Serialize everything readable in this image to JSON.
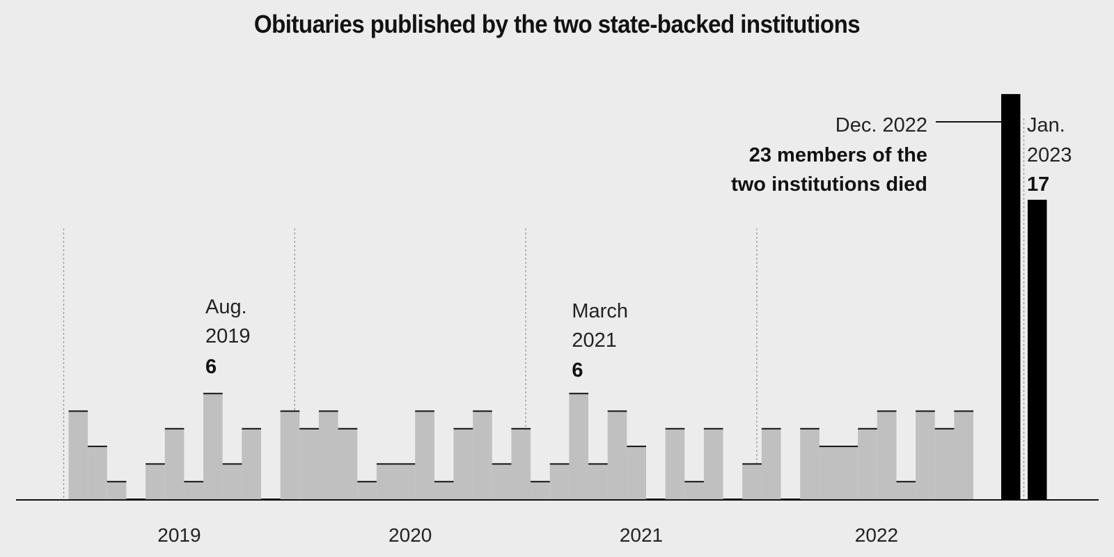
{
  "chart_data": {
    "type": "bar",
    "title": "Obituaries published by the two state-backed institutions",
    "x_labels": [
      "2019",
      "2020",
      "2021",
      "2022"
    ],
    "months": [
      "Jan 2019",
      "Feb 2019",
      "Mar 2019",
      "Apr 2019",
      "May 2019",
      "Jun 2019",
      "Jul 2019",
      "Aug 2019",
      "Sep 2019",
      "Oct 2019",
      "Nov 2019",
      "Dec 2019",
      "Jan 2020",
      "Feb 2020",
      "Mar 2020",
      "Apr 2020",
      "May 2020",
      "Jun 2020",
      "Jul 2020",
      "Aug 2020",
      "Sep 2020",
      "Oct 2020",
      "Nov 2020",
      "Dec 2020",
      "Jan 2021",
      "Feb 2021",
      "Mar 2021",
      "Apr 2021",
      "May 2021",
      "Jun 2021",
      "Jul 2021",
      "Aug 2021",
      "Sep 2021",
      "Oct 2021",
      "Nov 2021",
      "Dec 2021",
      "Jan 2022",
      "Feb 2022",
      "Mar 2022",
      "Apr 2022",
      "May 2022",
      "Jun 2022",
      "Jul 2022",
      "Aug 2022",
      "Sep 2022",
      "Oct 2022",
      "Nov 2022",
      "Dec 2022",
      "Jan 2023"
    ],
    "values": [
      5,
      3,
      1,
      0,
      2,
      4,
      1,
      6,
      2,
      4,
      0,
      5,
      4,
      5,
      4,
      1,
      2,
      2,
      5,
      1,
      4,
      5,
      2,
      4,
      1,
      2,
      6,
      2,
      5,
      3,
      0,
      4,
      1,
      4,
      0,
      2,
      4,
      0,
      4,
      3,
      3,
      4,
      5,
      1,
      5,
      4,
      5,
      23,
      17
    ],
    "highlight": [
      "Dec 2022",
      "Jan 2023"
    ],
    "colors": {
      "bar": "#c0c0c0",
      "highlight": "#000000",
      "background": "#ececec"
    },
    "grid": false,
    "annotations": [
      {
        "lines": [
          "Aug.",
          "2019"
        ],
        "value": "6"
      },
      {
        "lines": [
          "March",
          "2021"
        ],
        "value": "6"
      },
      {
        "lines": [
          "Dec. 2022"
        ],
        "bold_lines": [
          "23 members of the",
          "two institutions died"
        ]
      },
      {
        "lines": [
          "Jan.",
          "2023"
        ],
        "value": "17"
      }
    ]
  }
}
